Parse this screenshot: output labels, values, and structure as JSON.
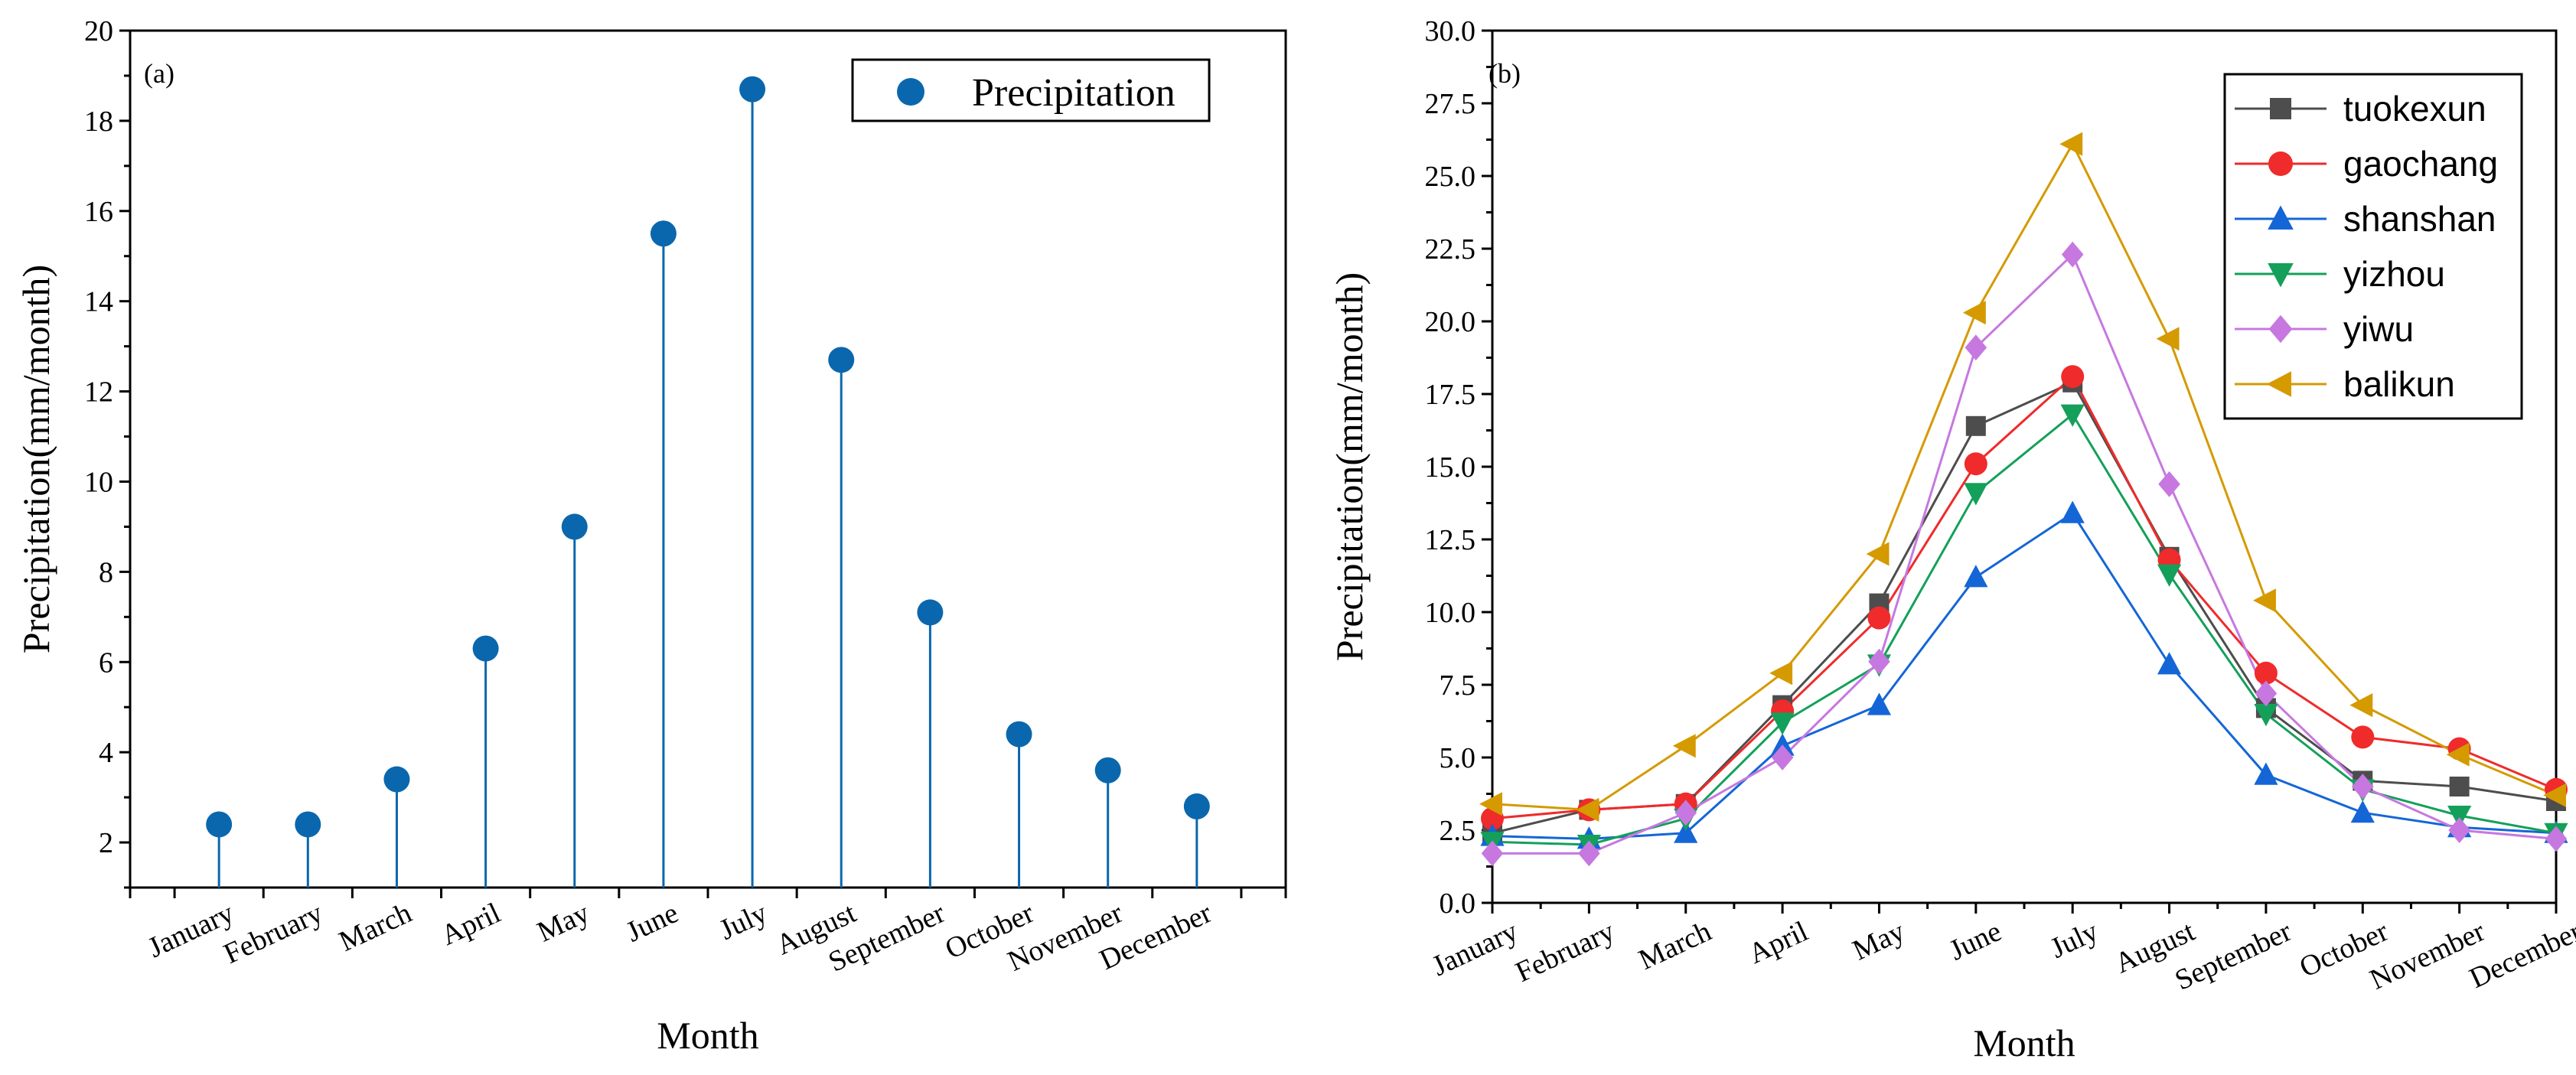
{
  "chart_data": [
    {
      "panel": "(a)",
      "type": "scatter",
      "style": "stem",
      "title": "",
      "xlabel": "Month",
      "ylabel": "Precipitation(mm/month)",
      "categories": [
        "January",
        "February",
        "March",
        "April",
        "May",
        "June",
        "July",
        "August",
        "September",
        "October",
        "November",
        "December"
      ],
      "ylim": [
        1,
        20
      ],
      "yticks": [
        2,
        4,
        6,
        8,
        10,
        12,
        14,
        16,
        18,
        20
      ],
      "ytick_labels": [
        "2",
        "4",
        "6",
        "8",
        "10",
        "12",
        "14",
        "16",
        "18",
        "20"
      ],
      "series": [
        {
          "name": "Precipitation",
          "color": "#0a67ad",
          "values": [
            2.4,
            2.4,
            3.4,
            6.3,
            9.0,
            15.5,
            18.7,
            12.7,
            7.1,
            4.4,
            3.6,
            2.8
          ]
        }
      ],
      "legend": "top-right"
    },
    {
      "panel": "(b)",
      "type": "line",
      "title": "",
      "xlabel": "Month",
      "ylabel": "Precipitation(mm/month)",
      "categories": [
        "January",
        "February",
        "March",
        "April",
        "May",
        "June",
        "July",
        "August",
        "September",
        "October",
        "November",
        "December"
      ],
      "ylim": [
        0,
        30
      ],
      "yticks": [
        0,
        2.5,
        5,
        7.5,
        10,
        12.5,
        15,
        17.5,
        20,
        22.5,
        25,
        27.5,
        30
      ],
      "ytick_labels": [
        "0.0",
        "2.5",
        "5.0",
        "7.5",
        "10.0",
        "12.5",
        "15.0",
        "17.5",
        "20.0",
        "22.5",
        "25.0",
        "27.5",
        "30.0"
      ],
      "series": [
        {
          "name": "tuokexun",
          "color": "#4d4d4d",
          "marker": "square",
          "values": [
            2.4,
            3.2,
            3.4,
            6.8,
            10.3,
            16.4,
            17.9,
            11.9,
            6.7,
            4.2,
            4.0,
            3.5
          ]
        },
        {
          "name": "gaochang",
          "color": "#ef2b2b",
          "marker": "circle",
          "values": [
            2.9,
            3.2,
            3.4,
            6.6,
            9.8,
            15.1,
            18.1,
            11.8,
            7.9,
            5.7,
            5.3,
            3.9
          ]
        },
        {
          "name": "shanshan",
          "color": "#1466d6",
          "marker": "triangle-up",
          "values": [
            2.3,
            2.2,
            2.4,
            5.4,
            6.8,
            11.2,
            13.4,
            8.2,
            4.4,
            3.1,
            2.6,
            2.4
          ]
        },
        {
          "name": "yizhou",
          "color": "#14a05a",
          "marker": "triangle-down",
          "values": [
            2.1,
            2.0,
            2.9,
            6.2,
            8.2,
            14.1,
            16.8,
            11.3,
            6.5,
            3.9,
            3.0,
            2.4
          ]
        },
        {
          "name": "yiwu",
          "color": "#c678e0",
          "marker": "diamond",
          "values": [
            1.7,
            1.7,
            3.1,
            5.0,
            8.3,
            19.1,
            22.3,
            14.4,
            7.2,
            4.0,
            2.5,
            2.2
          ]
        },
        {
          "name": "balikun",
          "color": "#d49a00",
          "marker": "triangle-left",
          "values": [
            3.4,
            3.2,
            5.4,
            7.9,
            12.0,
            20.3,
            26.1,
            19.4,
            10.4,
            6.8,
            5.1,
            3.7
          ]
        }
      ],
      "legend": "top-right"
    }
  ]
}
